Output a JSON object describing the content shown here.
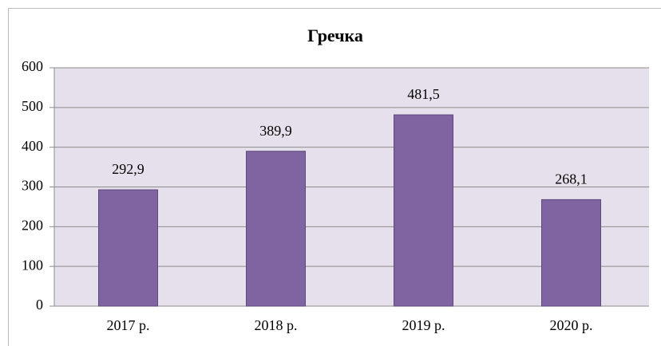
{
  "chart_data": {
    "type": "bar",
    "title": "Гречка",
    "categories": [
      "2017 р.",
      "2018 р.",
      "2019 р.",
      "2020 р."
    ],
    "values": [
      292.9,
      389.9,
      481.5,
      268.1
    ],
    "value_labels": [
      "292,9",
      "389,9",
      "481,5",
      "268,1"
    ],
    "color": "#8064a2",
    "ylim": [
      0,
      600
    ],
    "yticks": [
      0,
      100,
      200,
      300,
      400,
      500,
      600
    ],
    "grid": true
  }
}
